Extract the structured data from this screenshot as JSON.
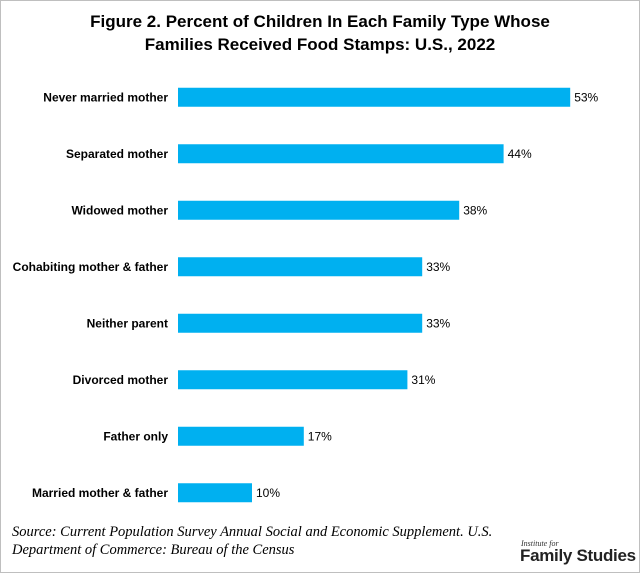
{
  "chart_data": {
    "type": "bar",
    "orientation": "horizontal",
    "title": "Figure 2. Percent of Children In Each Family Type Whose Families Received Food Stamps: U.S., 2022",
    "categories": [
      "Never married mother",
      "Separated mother",
      "Widowed mother",
      "Cohabiting mother & father",
      "Neither parent",
      "Divorced mother",
      "Father only",
      "Married mother & father"
    ],
    "values": [
      53,
      44,
      38,
      33,
      33,
      31,
      17,
      10
    ],
    "value_labels": [
      "53%",
      "44%",
      "38%",
      "33%",
      "33%",
      "31%",
      "17%",
      "10%"
    ],
    "color": "#00b0f0",
    "xlim": [
      0,
      60
    ],
    "source": "Source: Current Population Survey Annual Social and Economic Supplement. U.S. Department of Commerce: Bureau of the Census",
    "logo": {
      "small": "Institute for",
      "big": "Family Studies"
    }
  }
}
